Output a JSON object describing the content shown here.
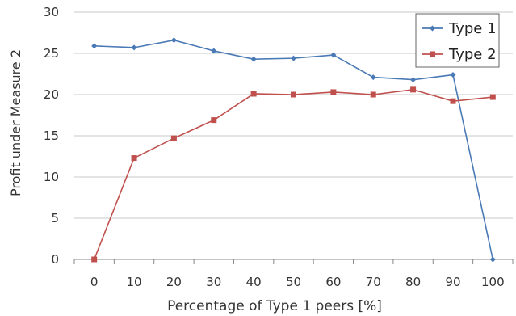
{
  "chart_data": {
    "type": "line",
    "xlabel": "Percentage of Type 1 peers [%]",
    "ylabel": "Profit under Measure 2",
    "x": [
      0,
      10,
      20,
      30,
      40,
      50,
      60,
      70,
      80,
      90,
      100
    ],
    "ylim": [
      0,
      30
    ],
    "yticks": [
      0,
      5,
      10,
      15,
      20,
      25,
      30
    ],
    "grid": true,
    "legend_position": "top-right",
    "series": [
      {
        "name": "Type 1",
        "color": "#4a7ab5",
        "marker": "diamond",
        "values": [
          25.9,
          25.7,
          26.6,
          25.3,
          24.3,
          24.4,
          24.8,
          22.1,
          21.8,
          22.4,
          0.0
        ]
      },
      {
        "name": "Type 2",
        "color": "#c0504d",
        "marker": "square",
        "values": [
          0.0,
          12.3,
          14.7,
          16.9,
          20.1,
          20.0,
          20.3,
          20.0,
          20.6,
          19.2,
          19.7
        ]
      }
    ]
  }
}
